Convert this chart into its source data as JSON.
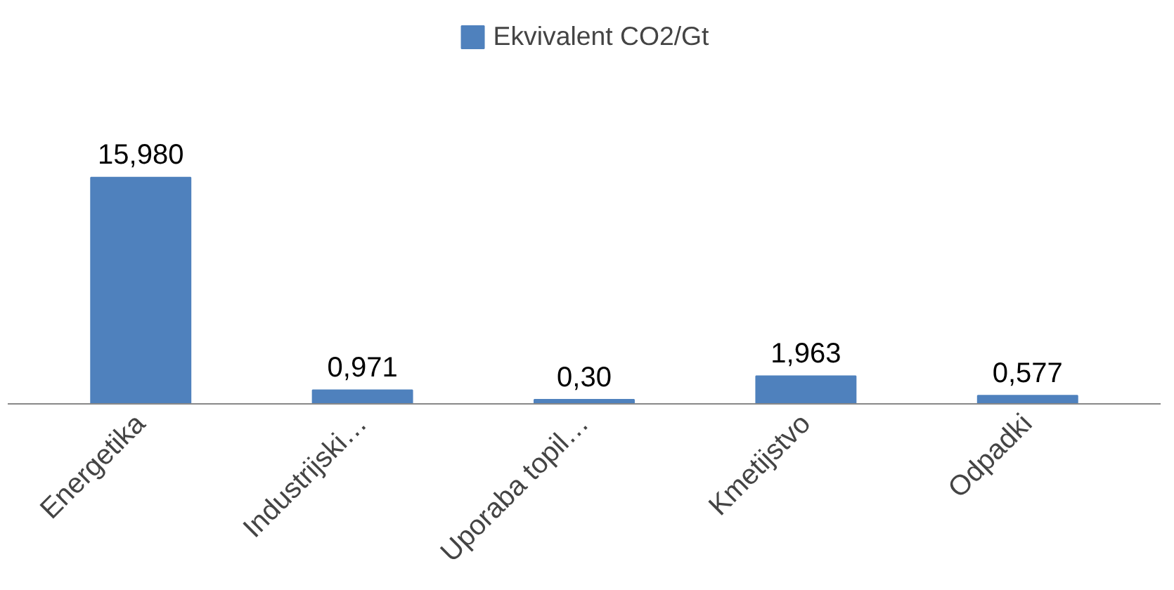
{
  "chart_data": {
    "type": "bar",
    "categories": [
      "Energetika",
      "Industrijski…",
      "Uporaba topil…",
      "Kmetijstvo",
      "Odpadki"
    ],
    "series": [
      {
        "name": "Ekvivalent CO2/Gt",
        "color": "#4f81bd",
        "values": [
          15.98,
          0.971,
          0.3,
          1.963,
          0.577
        ],
        "value_labels": [
          "15,980",
          "0,971",
          "0,30",
          "1,963",
          "0,577"
        ]
      }
    ],
    "legend": "top",
    "grid": false
  }
}
